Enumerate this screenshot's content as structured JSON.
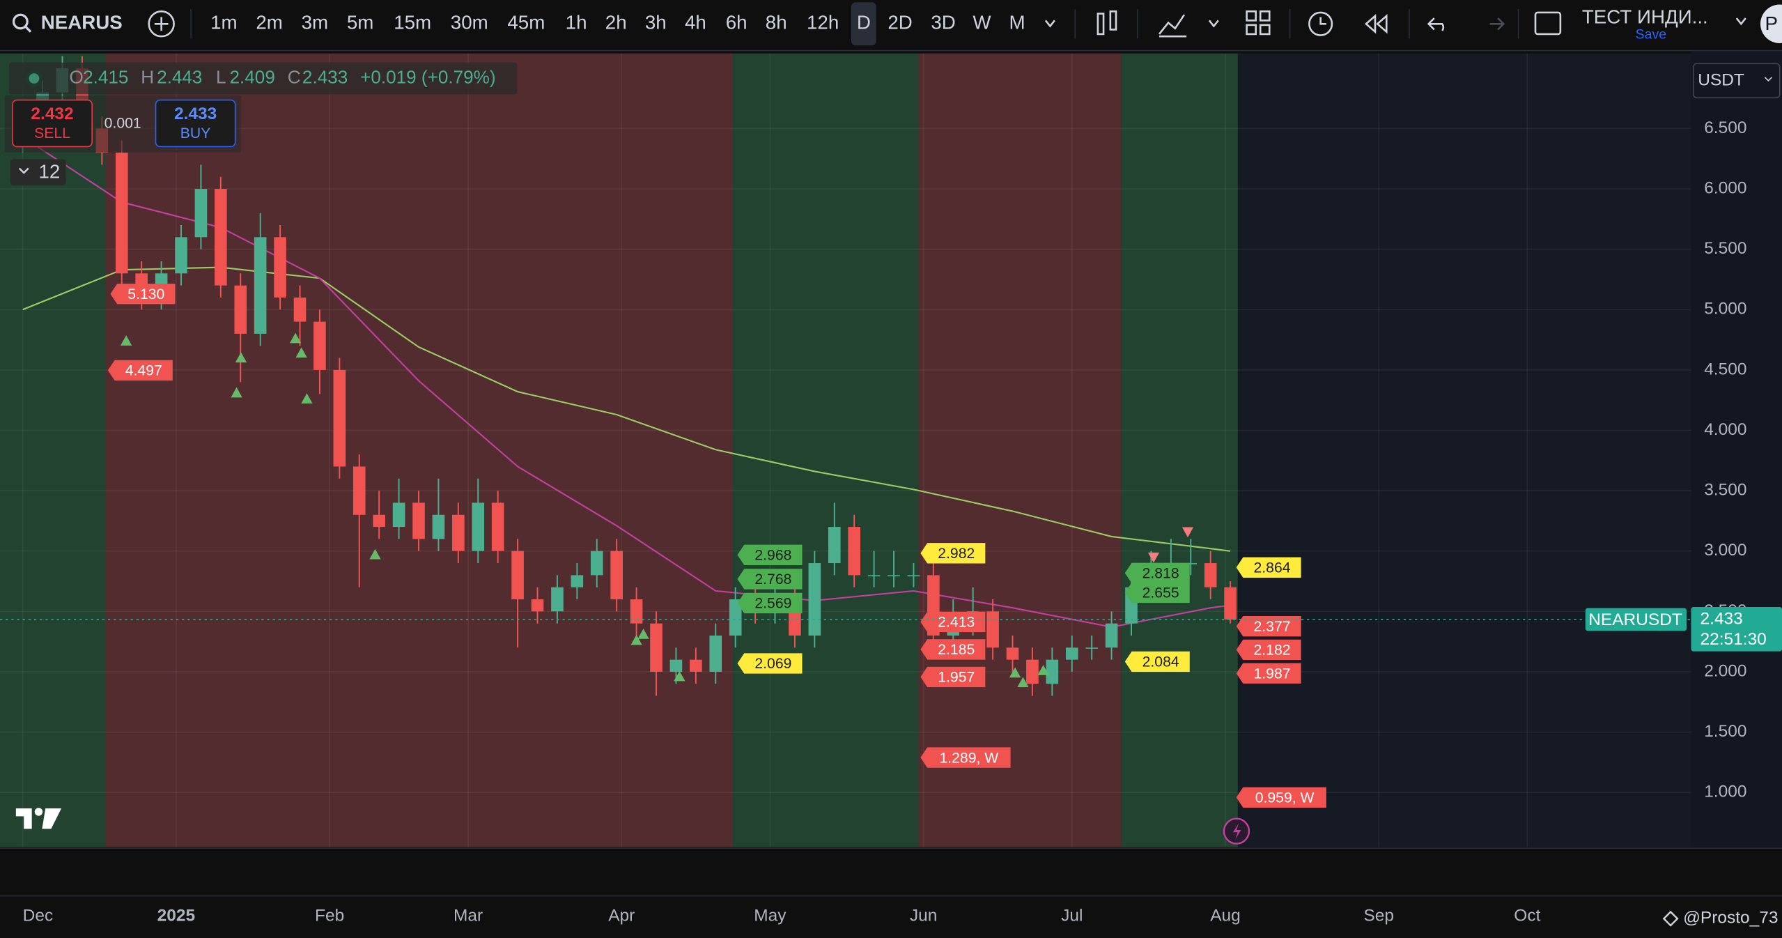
{
  "toolbar": {
    "symbol": "NEARUS",
    "timeframes": [
      "1m",
      "2m",
      "3m",
      "5m",
      "15m",
      "30m",
      "45m",
      "1h",
      "2h",
      "3h",
      "4h",
      "6h",
      "8h",
      "12h",
      "D",
      "2D",
      "3D",
      "W",
      "M"
    ],
    "active_timeframe": 14,
    "layout_name": "ТЕСТ ИНДИ...",
    "save": "Save",
    "account": "P"
  },
  "legend": {
    "o_label": "O",
    "open": 2.415,
    "h_label": "H",
    "high": 2.443,
    "l_label": "L",
    "low": 2.409,
    "c_label": "C",
    "close": 2.433,
    "change": "+0.019 (+0.79%)",
    "sell_price": 2.432,
    "sell": "SELL",
    "spread": 0.001,
    "buy_price": 2.433,
    "buy": "BUY",
    "indicators_count": 12
  },
  "currency": "USDT",
  "watermark": "@Prosto_73",
  "chart_data": {
    "type": "candlestick",
    "up_color": "#4caf8f",
    "down_color": "#f05350",
    "x": [
      0,
      4,
      8,
      12,
      16,
      20,
      24,
      28,
      32,
      36,
      40,
      44,
      48,
      52,
      56,
      60,
      64,
      68,
      72,
      76,
      80,
      84,
      88,
      92,
      96,
      100,
      104,
      108,
      112,
      116,
      120,
      124,
      128,
      132,
      136,
      140,
      144,
      148,
      152,
      156,
      160,
      164,
      168,
      172,
      176,
      180,
      184,
      188,
      192,
      196,
      200,
      204,
      208,
      212,
      216,
      220,
      224,
      228,
      232,
      236,
      240,
      244
    ],
    "open": [
      6.4,
      6.6,
      6.8,
      7.0,
      6.5,
      6.3,
      5.3,
      5.1,
      5.3,
      5.6,
      6.0,
      5.2,
      4.8,
      5.6,
      5.1,
      4.9,
      4.5,
      3.7,
      3.3,
      3.2,
      3.4,
      3.1,
      3.3,
      3.0,
      3.4,
      3.0,
      2.6,
      2.5,
      2.7,
      2.8,
      3.0,
      2.6,
      2.4,
      2.0,
      2.1,
      2.0,
      2.3,
      2.6,
      2.5,
      2.6,
      2.3,
      2.9,
      3.2,
      2.8,
      2.8,
      2.8,
      2.8,
      2.3,
      2.4,
      2.5,
      2.2,
      2.1,
      1.9,
      2.1,
      2.2,
      2.2,
      2.4,
      2.7,
      2.8,
      2.9,
      2.9,
      2.7
    ],
    "high": [
      6.7,
      6.9,
      7.1,
      7.1,
      6.6,
      6.4,
      5.4,
      5.4,
      5.7,
      6.2,
      6.1,
      5.3,
      5.8,
      5.7,
      5.2,
      5.0,
      4.6,
      3.8,
      3.5,
      3.6,
      3.5,
      3.6,
      3.4,
      3.6,
      3.5,
      3.1,
      2.7,
      2.8,
      2.9,
      3.1,
      3.1,
      2.7,
      2.5,
      2.2,
      2.2,
      2.4,
      2.7,
      2.7,
      2.7,
      2.7,
      3.0,
      3.4,
      3.3,
      3.0,
      3.0,
      2.9,
      2.9,
      2.6,
      2.7,
      2.6,
      2.3,
      2.2,
      2.2,
      2.3,
      2.3,
      2.5,
      2.8,
      3.0,
      3.1,
      3.1,
      3.0,
      2.75
    ],
    "low": [
      6.3,
      6.5,
      6.7,
      6.4,
      6.2,
      5.2,
      5.0,
      5.0,
      5.2,
      5.5,
      5.1,
      4.4,
      4.7,
      5.0,
      4.7,
      4.3,
      3.6,
      2.7,
      3.1,
      3.1,
      3.0,
      3.0,
      2.9,
      2.9,
      2.9,
      2.2,
      2.4,
      2.4,
      2.6,
      2.7,
      2.5,
      2.3,
      1.8,
      1.9,
      1.9,
      1.9,
      2.2,
      2.4,
      2.4,
      2.2,
      2.2,
      2.8,
      2.7,
      2.7,
      2.7,
      2.7,
      2.2,
      2.2,
      2.3,
      2.1,
      2.0,
      1.8,
      1.8,
      2.0,
      2.1,
      2.1,
      2.3,
      2.6,
      2.7,
      2.8,
      2.6,
      2.4
    ],
    "close": [
      6.6,
      6.8,
      7.0,
      6.5,
      6.3,
      5.3,
      5.1,
      5.3,
      5.6,
      6.0,
      5.2,
      4.8,
      5.6,
      5.1,
      4.9,
      4.5,
      3.7,
      3.3,
      3.2,
      3.4,
      3.1,
      3.3,
      3.0,
      3.4,
      3.0,
      2.6,
      2.5,
      2.7,
      2.8,
      3.0,
      2.6,
      2.4,
      2.0,
      2.1,
      2.0,
      2.3,
      2.6,
      2.5,
      2.6,
      2.3,
      2.9,
      3.2,
      2.8,
      2.8,
      2.8,
      2.8,
      2.3,
      2.4,
      2.5,
      2.2,
      2.1,
      1.9,
      2.1,
      2.2,
      2.2,
      2.4,
      2.7,
      2.8,
      2.9,
      2.9,
      2.7,
      2.433
    ],
    "lines": [
      {
        "color": "#9ccc65",
        "x": [
          0,
          20,
          40,
          60,
          80,
          100,
          120,
          140,
          160,
          180,
          200,
          220,
          240,
          244
        ],
        "values": [
          5.0,
          5.33,
          5.35,
          5.26,
          4.69,
          4.32,
          4.13,
          3.84,
          3.66,
          3.51,
          3.33,
          3.12,
          3.02,
          3.0
        ]
      },
      {
        "color": "#c2409e",
        "x": [
          0,
          20,
          40,
          60,
          80,
          100,
          120,
          140,
          160,
          180,
          200,
          220,
          240,
          244
        ],
        "values": [
          6.43,
          5.89,
          5.68,
          5.26,
          4.41,
          3.7,
          3.21,
          2.67,
          2.59,
          2.67,
          2.53,
          2.37,
          2.53,
          2.55
        ]
      }
    ],
    "zones": [
      {
        "start": -4.6,
        "end": 16.8,
        "color": "#21432f"
      },
      {
        "start": 16.8,
        "end": 143.5,
        "color": "#532c2f"
      },
      {
        "start": 143.5,
        "end": 181,
        "color": "#21432f"
      },
      {
        "start": 181,
        "end": 222,
        "color": "#532c2f"
      },
      {
        "start": 222,
        "end": 245.5,
        "color": "#21432f"
      }
    ],
    "signals": [
      {
        "direction": "up",
        "color": "#66bb6a",
        "x": [
          20.9,
          43.2,
          44.1,
          55.1,
          56.3,
          57.4,
          71.2,
          124.0,
          125.4,
          132.7,
          200.5,
          202.1,
          206.2
        ],
        "values": [
          4.74,
          4.31,
          4.6,
          4.76,
          4.64,
          4.26,
          2.97,
          2.26,
          2.31,
          1.96,
          1.99,
          1.91,
          2.01
        ]
      },
      {
        "direction": "down",
        "color": "#f77c80",
        "x": [
          235.4,
          228.5
        ],
        "values": [
          3.16,
          2.95
        ]
      }
    ],
    "annotations": [
      {
        "day": 17.7,
        "value": 5.13,
        "label": "5.130",
        "color": "#f05350",
        "text_color": "#ffffff"
      },
      {
        "day": 17.2,
        "value": 4.497,
        "label": "4.497",
        "color": "#f05350",
        "text_color": "#ffffff"
      },
      {
        "day": 144.4,
        "value": 2.968,
        "label": "2.968",
        "color": "#4caf50",
        "text_color": "#1e1e1e"
      },
      {
        "day": 144.4,
        "value": 2.768,
        "label": "2.768",
        "color": "#4caf50",
        "text_color": "#1e1e1e"
      },
      {
        "day": 144.4,
        "value": 2.569,
        "label": "2.569",
        "color": "#4caf50",
        "text_color": "#1e1e1e"
      },
      {
        "day": 144.4,
        "value": 2.069,
        "label": "2.069",
        "color": "#ffeb3b",
        "text_color": "#1e1e1e"
      },
      {
        "day": 181.4,
        "value": 2.982,
        "label": "2.982",
        "color": "#ffeb3b",
        "text_color": "#1e1e1e"
      },
      {
        "day": 181.4,
        "value": 2.413,
        "label": "2.413",
        "color": "#f05350",
        "text_color": "#ffffff"
      },
      {
        "day": 181.4,
        "value": 2.185,
        "label": "2.185",
        "color": "#f05350",
        "text_color": "#ffffff"
      },
      {
        "day": 181.4,
        "value": 1.957,
        "label": "1.957",
        "color": "#f05350",
        "text_color": "#ffffff"
      },
      {
        "day": 181.4,
        "value": 1.289,
        "label": "1.289, W",
        "color": "#f05350",
        "text_color": "#ffffff"
      },
      {
        "day": 222.7,
        "value": 2.818,
        "label": "2.818",
        "color": "#4caf50",
        "text_color": "#1e1e1e"
      },
      {
        "day": 222.7,
        "value": 2.655,
        "label": "2.655",
        "color": "#4caf50",
        "text_color": "#1e1e1e"
      },
      {
        "day": 222.7,
        "value": 2.084,
        "label": "2.084",
        "color": "#ffeb3b",
        "text_color": "#1e1e1e"
      },
      {
        "day": 245.2,
        "value": 2.864,
        "label": "2.864",
        "color": "#ffeb3b",
        "text_color": "#1e1e1e"
      },
      {
        "day": 245.2,
        "value": 2.377,
        "label": "2.377",
        "color": "#f05350",
        "text_color": "#ffffff"
      },
      {
        "day": 245.2,
        "value": 2.182,
        "label": "2.182",
        "color": "#f05350",
        "text_color": "#ffffff"
      },
      {
        "day": 245.2,
        "value": 1.987,
        "label": "1.987",
        "color": "#f05350",
        "text_color": "#ffffff"
      },
      {
        "day": 245.2,
        "value": 0.959,
        "label": "0.959, W",
        "color": "#f05350",
        "text_color": "#ffffff"
      }
    ],
    "last_price": {
      "symbol": "NEARUSDT",
      "value": 2.433,
      "countdown": "22:51:30",
      "color": "#22ab94"
    },
    "xlim": [
      -4.6,
      337.1
    ],
    "xticks": [
      {
        "value": 0,
        "label": "Dec"
      },
      {
        "value": 31,
        "label": "2025"
      },
      {
        "value": 62,
        "label": "Feb"
      },
      {
        "value": 90,
        "label": "Mar"
      },
      {
        "value": 121,
        "label": "Apr"
      },
      {
        "value": 151,
        "label": "May"
      },
      {
        "value": 182,
        "label": "Jun"
      },
      {
        "value": 212,
        "label": "Jul"
      },
      {
        "value": 243,
        "label": "Aug"
      },
      {
        "value": 274,
        "label": "Sep"
      },
      {
        "value": 304,
        "label": "Oct"
      }
    ],
    "ylim": [
      0.548,
      7.122
    ],
    "yticks": [
      {
        "value": 1,
        "label": "1.000"
      },
      {
        "value": 1.5,
        "label": "1.500"
      },
      {
        "value": 2,
        "label": "2.000"
      },
      {
        "value": 2.5,
        "label": "2.500"
      },
      {
        "value": 3,
        "label": "3.000"
      },
      {
        "value": 3.5,
        "label": "3.500"
      },
      {
        "value": 4,
        "label": "4.000"
      },
      {
        "value": 4.5,
        "label": "4.500"
      },
      {
        "value": 5,
        "label": "5.000"
      },
      {
        "value": 5.5,
        "label": "5.500"
      },
      {
        "value": 6,
        "label": "6.000"
      },
      {
        "value": 6.5,
        "label": "6.500"
      }
    ],
    "grid": true
  }
}
